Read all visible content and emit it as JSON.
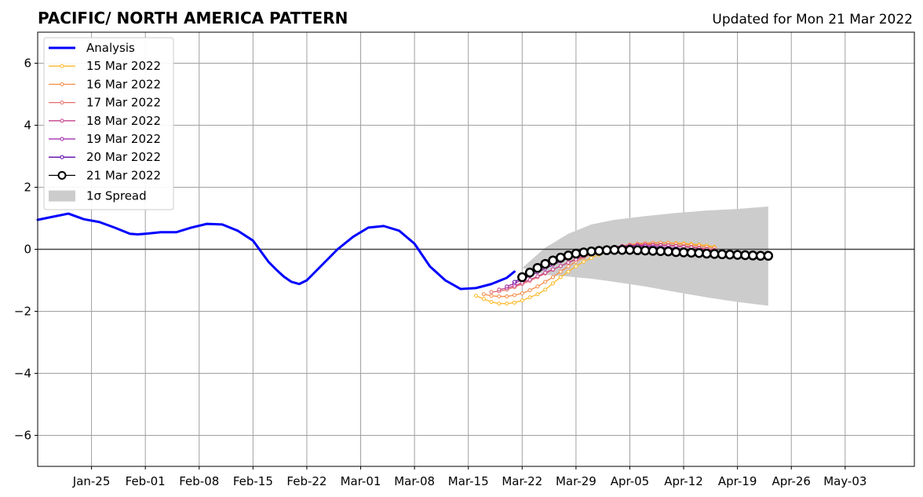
{
  "chart_data": {
    "type": "line",
    "title": "PACIFIC/ NORTH AMERICA PATTERN",
    "subtitle": "Updated for Mon 21 Mar 2022",
    "xlabel": "",
    "ylabel": "",
    "xlim": [
      "2022-01-18",
      "2022-05-12"
    ],
    "ylim": [
      -7,
      7
    ],
    "grid": true,
    "legend_position": "top-left",
    "x_tick_labels": [
      "Jan-25",
      "Feb-01",
      "Feb-08",
      "Feb-15",
      "Feb-22",
      "Mar-01",
      "Mar-08",
      "Mar-15",
      "Mar-22",
      "Mar-29",
      "Apr-05",
      "Apr-12",
      "Apr-19",
      "Apr-26",
      "May-03"
    ],
    "x_tick_dates": [
      "2022-01-25",
      "2022-02-01",
      "2022-02-08",
      "2022-02-15",
      "2022-02-22",
      "2022-03-01",
      "2022-03-08",
      "2022-03-15",
      "2022-03-22",
      "2022-03-29",
      "2022-04-05",
      "2022-04-12",
      "2022-04-19",
      "2022-04-26",
      "2022-05-03"
    ],
    "y_ticks": [
      -6,
      -4,
      -2,
      0,
      2,
      4,
      6
    ],
    "y_tick_labels": [
      "−6",
      "−4",
      "−2",
      "0",
      "2",
      "4",
      "6"
    ],
    "analysis": {
      "name": "Analysis",
      "color": "#0000ff",
      "x": [
        "2022-01-18",
        "2022-01-20",
        "2022-01-22",
        "2022-01-24",
        "2022-01-26",
        "2022-01-28",
        "2022-01-30",
        "2022-01-31",
        "2022-02-01",
        "2022-02-03",
        "2022-02-05",
        "2022-02-07",
        "2022-02-09",
        "2022-02-11",
        "2022-02-13",
        "2022-02-15",
        "2022-02-17",
        "2022-02-18",
        "2022-02-19",
        "2022-02-20",
        "2022-02-21",
        "2022-02-22",
        "2022-02-24",
        "2022-02-26",
        "2022-02-28",
        "2022-03-02",
        "2022-03-04",
        "2022-03-06",
        "2022-03-08",
        "2022-03-10",
        "2022-03-12",
        "2022-03-14",
        "2022-03-16",
        "2022-03-18",
        "2022-03-20",
        "2022-03-21"
      ],
      "y": [
        0.95,
        1.05,
        1.15,
        0.97,
        0.88,
        0.7,
        0.5,
        0.48,
        0.5,
        0.55,
        0.55,
        0.7,
        0.82,
        0.8,
        0.6,
        0.28,
        -0.4,
        -0.65,
        -0.88,
        -1.05,
        -1.12,
        -1.0,
        -0.5,
        0.0,
        0.4,
        0.7,
        0.75,
        0.6,
        0.18,
        -0.55,
        -1.0,
        -1.28,
        -1.25,
        -1.12,
        -0.92,
        -0.72
      ]
    },
    "spread": {
      "name": "1σ Spread",
      "color": "#cccccc",
      "x": [
        "2022-03-22",
        "2022-03-25",
        "2022-03-28",
        "2022-03-31",
        "2022-04-03",
        "2022-04-07",
        "2022-04-11",
        "2022-04-15",
        "2022-04-19",
        "2022-04-23"
      ],
      "upper": [
        -0.6,
        0.05,
        0.5,
        0.8,
        0.95,
        1.07,
        1.17,
        1.25,
        1.3,
        1.38
      ],
      "lower": [
        -0.6,
        -0.82,
        -0.88,
        -0.95,
        -1.05,
        -1.2,
        -1.38,
        -1.55,
        -1.7,
        -1.82
      ]
    },
    "forecasts": [
      {
        "name": "15 Mar 2022",
        "color": "#fdb827",
        "x_start": "2022-03-16",
        "y": [
          -1.5,
          -1.6,
          -1.7,
          -1.75,
          -1.75,
          -1.72,
          -1.65,
          -1.55,
          -1.45,
          -1.3,
          -1.1,
          -0.9,
          -0.72,
          -0.55,
          -0.4,
          -0.28,
          -0.17,
          -0.08,
          0.0,
          0.06,
          0.11,
          0.15,
          0.18,
          0.2,
          0.21,
          0.21,
          0.2,
          0.19,
          0.17,
          0.15,
          0.12,
          0.08
        ]
      },
      {
        "name": "16 Mar 2022",
        "color": "#f58c46",
        "x_start": "2022-03-17",
        "y": [
          -1.45,
          -1.5,
          -1.52,
          -1.52,
          -1.48,
          -1.42,
          -1.32,
          -1.2,
          -1.05,
          -0.9,
          -0.72,
          -0.55,
          -0.4,
          -0.27,
          -0.16,
          -0.07,
          0.0,
          0.06,
          0.11,
          0.15,
          0.18,
          0.2,
          0.21,
          0.21,
          0.2,
          0.18,
          0.16,
          0.14,
          0.11,
          0.08,
          0.05
        ]
      },
      {
        "name": "17 Mar 2022",
        "color": "#e36c69",
        "x_start": "2022-03-18",
        "y": [
          -1.38,
          -1.35,
          -1.3,
          -1.22,
          -1.12,
          -1.02,
          -0.9,
          -0.78,
          -0.66,
          -0.54,
          -0.42,
          -0.31,
          -0.21,
          -0.12,
          -0.05,
          0.01,
          0.06,
          0.1,
          0.13,
          0.15,
          0.16,
          0.16,
          0.15,
          0.14,
          0.12,
          0.1,
          0.08,
          0.05,
          0.02,
          -0.01
        ]
      },
      {
        "name": "18 Mar 2022",
        "color": "#c5408c",
        "x_start": "2022-03-19",
        "y": [
          -1.3,
          -1.25,
          -1.18,
          -1.08,
          -0.98,
          -0.87,
          -0.76,
          -0.65,
          -0.54,
          -0.43,
          -0.33,
          -0.23,
          -0.14,
          -0.07,
          -0.01,
          0.04,
          0.08,
          0.11,
          0.13,
          0.14,
          0.14,
          0.13,
          0.12,
          0.1,
          0.08,
          0.06,
          0.03,
          0.0,
          -0.03
        ]
      },
      {
        "name": "19 Mar 2022",
        "color": "#9a1fa6",
        "x_start": "2022-03-20",
        "y": [
          -1.2,
          -1.1,
          -0.98,
          -0.86,
          -0.74,
          -0.62,
          -0.5,
          -0.39,
          -0.29,
          -0.2,
          -0.12,
          -0.05,
          0.01,
          0.05,
          0.08,
          0.1,
          0.11,
          0.11,
          0.1,
          0.09,
          0.07,
          0.05,
          0.03,
          0.0,
          -0.03,
          -0.06,
          -0.09,
          -0.12
        ]
      },
      {
        "name": "20 Mar 2022",
        "color": "#5c04a6",
        "x_start": "2022-03-21",
        "y": [
          -1.05,
          -0.92,
          -0.78,
          -0.64,
          -0.51,
          -0.39,
          -0.28,
          -0.19,
          -0.11,
          -0.05,
          0.0,
          0.03,
          0.05,
          0.06,
          0.06,
          0.05,
          0.04,
          0.02,
          0.0,
          -0.02,
          -0.05,
          -0.08,
          -0.11,
          -0.14,
          -0.17,
          -0.19,
          -0.21
        ]
      },
      {
        "name": "21 Mar 2022",
        "color": "#000000",
        "x_start": "2022-03-22",
        "y": [
          -0.9,
          -0.75,
          -0.6,
          -0.47,
          -0.36,
          -0.27,
          -0.2,
          -0.14,
          -0.1,
          -0.07,
          -0.05,
          -0.03,
          -0.02,
          -0.02,
          -0.02,
          -0.03,
          -0.04,
          -0.05,
          -0.06,
          -0.07,
          -0.09,
          -0.1,
          -0.11,
          -0.12,
          -0.14,
          -0.15,
          -0.16,
          -0.17,
          -0.18,
          -0.19,
          -0.2,
          -0.21,
          -0.21
        ]
      }
    ]
  }
}
